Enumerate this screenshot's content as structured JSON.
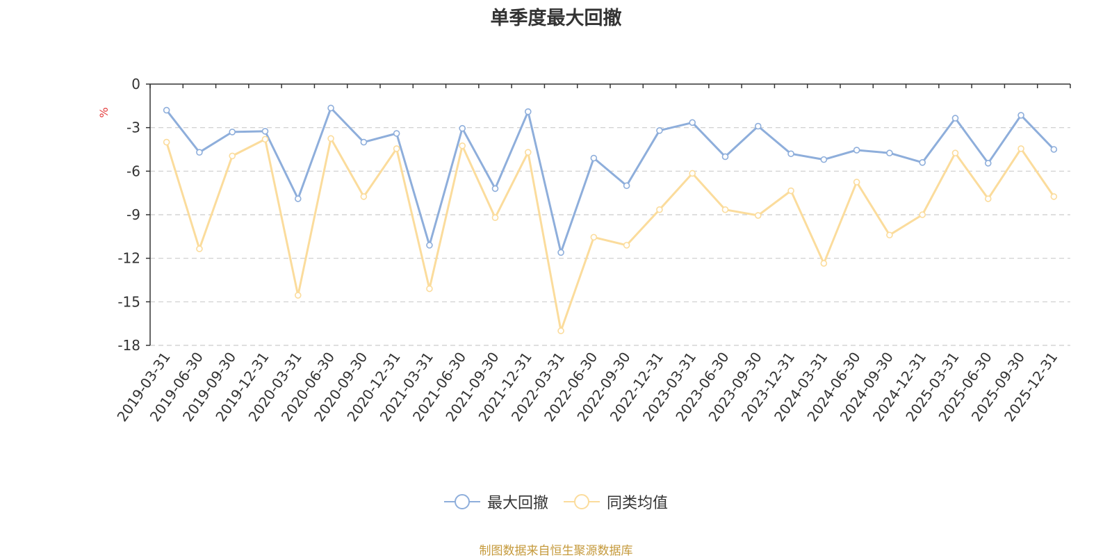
{
  "chart_data": {
    "type": "line",
    "title": "单季度最大回撤",
    "ylabel": "%",
    "ylim": [
      -18,
      0
    ],
    "yticks": [
      0,
      -3,
      -6,
      -9,
      -12,
      -15,
      -18
    ],
    "grid": true,
    "legend_position": "bottom-center",
    "categories": [
      "2019-03-31",
      "2019-06-30",
      "2019-09-30",
      "2019-12-31",
      "2020-03-31",
      "2020-06-30",
      "2020-09-30",
      "2020-12-31",
      "2021-03-31",
      "2021-06-30",
      "2021-09-30",
      "2021-12-31",
      "2022-03-31",
      "2022-06-30",
      "2022-09-30",
      "2022-12-31",
      "2023-03-31",
      "2023-06-30",
      "2023-09-30",
      "2023-12-31",
      "2024-03-31",
      "2024-06-30",
      "2024-09-30",
      "2024-12-31",
      "2025-03-31",
      "2025-06-30",
      "2025-09-30",
      "2025-12-31"
    ],
    "series": [
      {
        "name": "最大回撤",
        "color": "#8eaedb",
        "values": [
          -1.8,
          -4.7,
          -3.3,
          -3.25,
          -7.9,
          -1.65,
          -4.0,
          -3.4,
          -11.1,
          -3.05,
          -7.2,
          -1.9,
          -11.6,
          -5.1,
          -7.0,
          -3.2,
          -2.65,
          -5.0,
          -2.9,
          -4.8,
          -5.2,
          -4.55,
          -4.75,
          -5.4,
          -2.35,
          -5.45,
          -2.15,
          -4.5
        ]
      },
      {
        "name": "同类均值",
        "color": "#fbdc9c",
        "values": [
          -4.0,
          -11.35,
          -4.95,
          -3.8,
          -14.55,
          -3.75,
          -7.75,
          -4.45,
          -14.1,
          -4.25,
          -9.2,
          -4.7,
          -17.0,
          -10.55,
          -11.1,
          -8.65,
          -6.15,
          -8.65,
          -9.05,
          -7.35,
          -12.35,
          -6.75,
          -10.4,
          -9.0,
          -4.75,
          -7.9,
          -4.45,
          -7.75
        ]
      }
    ]
  },
  "footer": {
    "source": "制图数据来自恒生聚源数据库"
  }
}
